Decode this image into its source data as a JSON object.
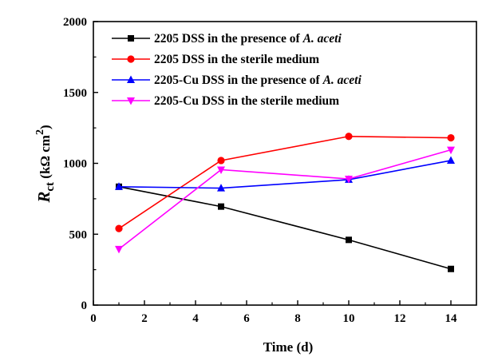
{
  "chart_data": {
    "type": "line",
    "xlabel": "Time (d)",
    "ylabel": {
      "symbol": "R",
      "subscript": "ct",
      "unit_open": " (kΩ cm",
      "unit_sup": "2",
      "unit_close": ")"
    },
    "xlim": [
      0,
      15
    ],
    "ylim": [
      0,
      2000
    ],
    "xticks": [
      "0",
      "2",
      "4",
      "6",
      "8",
      "10",
      "12",
      "14"
    ],
    "yticks": [
      "0",
      "500",
      "1000",
      "1500",
      "2000"
    ],
    "grid": false,
    "legend_position": "top-left",
    "series": [
      {
        "name": "2205 DSS in the presence of ",
        "name_italic": "A. aceti",
        "color": "#000000",
        "marker": "square",
        "x": [
          1,
          5,
          10,
          14
        ],
        "y": [
          835,
          695,
          460,
          255
        ]
      },
      {
        "name": "2205 DSS in the sterile medium",
        "name_italic": "",
        "color": "#ff0000",
        "marker": "circle",
        "x": [
          1,
          5,
          10,
          14
        ],
        "y": [
          540,
          1020,
          1190,
          1180
        ]
      },
      {
        "name": "2205-Cu DSS in the presence of ",
        "name_italic": "A. aceti",
        "color": "#0000ff",
        "marker": "triangle-up",
        "x": [
          1,
          5,
          10,
          14
        ],
        "y": [
          835,
          825,
          885,
          1020
        ]
      },
      {
        "name": "2205-Cu DSS in the sterile medium",
        "name_italic": "",
        "color": "#ff00ff",
        "marker": "triangle-down",
        "x": [
          1,
          5,
          10,
          14
        ],
        "y": [
          395,
          955,
          890,
          1095
        ]
      }
    ]
  }
}
